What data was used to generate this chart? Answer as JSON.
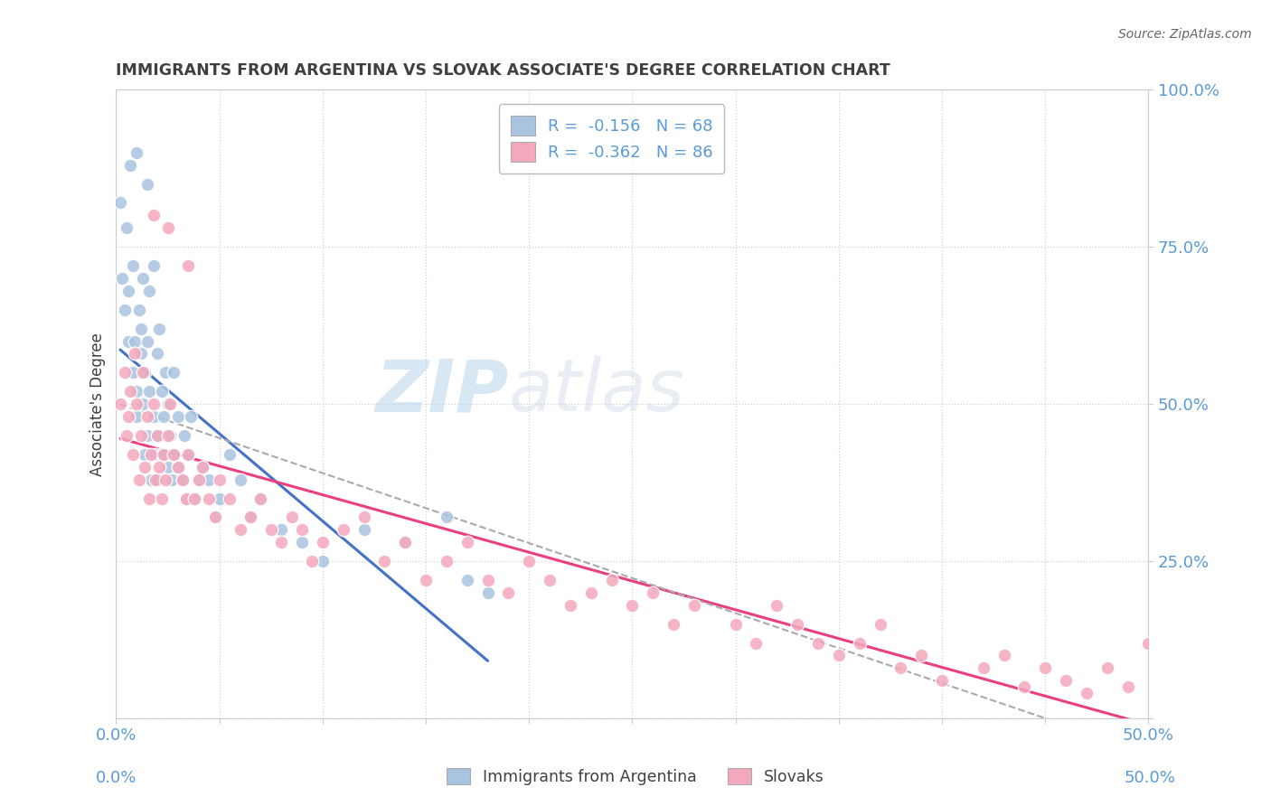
{
  "title": "IMMIGRANTS FROM ARGENTINA VS SLOVAK ASSOCIATE'S DEGREE CORRELATION CHART",
  "source": "Source: ZipAtlas.com",
  "ylabel": "Associate's Degree",
  "xlim": [
    0.0,
    0.5
  ],
  "ylim": [
    0.0,
    1.0
  ],
  "xticks": [
    0.0,
    0.05,
    0.1,
    0.15,
    0.2,
    0.25,
    0.3,
    0.35,
    0.4,
    0.45,
    0.5
  ],
  "xticklabels_show": [
    "0.0%",
    "50.0%"
  ],
  "yticks": [
    0.0,
    0.25,
    0.5,
    0.75,
    1.0
  ],
  "yticklabels": [
    "0.0%",
    "25.0%",
    "50.0%",
    "75.0%",
    "100.0%"
  ],
  "argentina_color": "#a8c4e0",
  "slovak_color": "#f4a8bc",
  "watermark_color": "#cde0f0",
  "argentina_R": -0.156,
  "argentina_N": 68,
  "slovak_R": -0.362,
  "slovak_N": 86,
  "argentina_scatter_x": [
    0.002,
    0.003,
    0.004,
    0.005,
    0.006,
    0.006,
    0.007,
    0.008,
    0.008,
    0.009,
    0.01,
    0.01,
    0.01,
    0.011,
    0.012,
    0.012,
    0.013,
    0.013,
    0.014,
    0.014,
    0.015,
    0.015,
    0.015,
    0.016,
    0.016,
    0.017,
    0.018,
    0.018,
    0.019,
    0.02,
    0.02,
    0.02,
    0.021,
    0.022,
    0.022,
    0.023,
    0.024,
    0.025,
    0.025,
    0.026,
    0.027,
    0.028,
    0.028,
    0.03,
    0.03,
    0.032,
    0.033,
    0.034,
    0.035,
    0.036,
    0.038,
    0.04,
    0.042,
    0.045,
    0.048,
    0.05,
    0.055,
    0.06,
    0.065,
    0.07,
    0.08,
    0.09,
    0.1,
    0.12,
    0.14,
    0.16,
    0.17,
    0.18
  ],
  "argentina_scatter_y": [
    0.82,
    0.7,
    0.65,
    0.78,
    0.68,
    0.6,
    0.88,
    0.55,
    0.72,
    0.6,
    0.9,
    0.52,
    0.48,
    0.65,
    0.58,
    0.62,
    0.7,
    0.5,
    0.42,
    0.55,
    0.85,
    0.6,
    0.45,
    0.52,
    0.68,
    0.38,
    0.48,
    0.72,
    0.42,
    0.58,
    0.45,
    0.38,
    0.62,
    0.52,
    0.42,
    0.48,
    0.55,
    0.5,
    0.4,
    0.45,
    0.38,
    0.55,
    0.42,
    0.48,
    0.4,
    0.38,
    0.45,
    0.35,
    0.42,
    0.48,
    0.35,
    0.38,
    0.4,
    0.38,
    0.32,
    0.35,
    0.42,
    0.38,
    0.32,
    0.35,
    0.3,
    0.28,
    0.25,
    0.3,
    0.28,
    0.32,
    0.22,
    0.2
  ],
  "slovak_scatter_x": [
    0.002,
    0.004,
    0.005,
    0.006,
    0.007,
    0.008,
    0.009,
    0.01,
    0.011,
    0.012,
    0.013,
    0.014,
    0.015,
    0.016,
    0.017,
    0.018,
    0.019,
    0.02,
    0.021,
    0.022,
    0.023,
    0.024,
    0.025,
    0.026,
    0.028,
    0.03,
    0.032,
    0.034,
    0.035,
    0.038,
    0.04,
    0.042,
    0.045,
    0.048,
    0.05,
    0.055,
    0.06,
    0.065,
    0.07,
    0.075,
    0.08,
    0.085,
    0.09,
    0.095,
    0.1,
    0.11,
    0.12,
    0.13,
    0.14,
    0.15,
    0.16,
    0.17,
    0.18,
    0.19,
    0.2,
    0.21,
    0.22,
    0.23,
    0.24,
    0.25,
    0.26,
    0.27,
    0.28,
    0.3,
    0.31,
    0.32,
    0.33,
    0.34,
    0.35,
    0.36,
    0.37,
    0.38,
    0.39,
    0.4,
    0.42,
    0.43,
    0.44,
    0.45,
    0.46,
    0.47,
    0.48,
    0.49,
    0.5,
    0.018,
    0.025,
    0.035
  ],
  "slovak_scatter_y": [
    0.5,
    0.55,
    0.45,
    0.48,
    0.52,
    0.42,
    0.58,
    0.5,
    0.38,
    0.45,
    0.55,
    0.4,
    0.48,
    0.35,
    0.42,
    0.5,
    0.38,
    0.45,
    0.4,
    0.35,
    0.42,
    0.38,
    0.45,
    0.5,
    0.42,
    0.4,
    0.38,
    0.35,
    0.42,
    0.35,
    0.38,
    0.4,
    0.35,
    0.32,
    0.38,
    0.35,
    0.3,
    0.32,
    0.35,
    0.3,
    0.28,
    0.32,
    0.3,
    0.25,
    0.28,
    0.3,
    0.32,
    0.25,
    0.28,
    0.22,
    0.25,
    0.28,
    0.22,
    0.2,
    0.25,
    0.22,
    0.18,
    0.2,
    0.22,
    0.18,
    0.2,
    0.15,
    0.18,
    0.15,
    0.12,
    0.18,
    0.15,
    0.12,
    0.1,
    0.12,
    0.15,
    0.08,
    0.1,
    0.06,
    0.08,
    0.1,
    0.05,
    0.08,
    0.06,
    0.04,
    0.08,
    0.05,
    0.12,
    0.8,
    0.78,
    0.72
  ],
  "legend_label_1": "R =  -0.156   N = 68",
  "legend_label_2": "R =  -0.362   N = 86",
  "background_color": "#ffffff",
  "grid_color": "#cccccc",
  "title_color": "#404040",
  "axis_color": "#5b9bd5",
  "trend_line_argentina_color": "#4472c4",
  "trend_line_slovak_color": "#e84080",
  "trend_dashed_color": "#aaaaaa"
}
